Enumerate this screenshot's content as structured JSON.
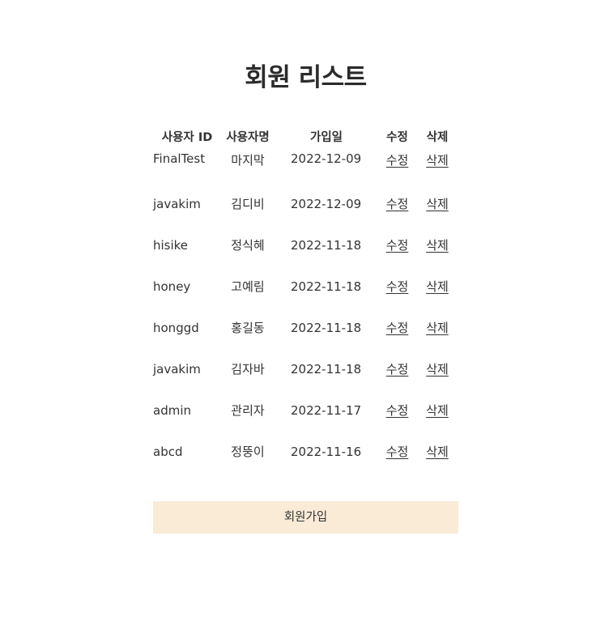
{
  "page": {
    "title": "회원 리스트"
  },
  "table": {
    "headers": {
      "id": "사용자 ID",
      "name": "사용자명",
      "date": "가입일",
      "edit": "수정",
      "delete": "삭제"
    },
    "rows": [
      {
        "id": "FinalTest",
        "name": "마지막",
        "date": "2022-12-09",
        "edit": "수정",
        "delete": "삭제"
      },
      {
        "id": "javakim",
        "name": "김디비",
        "date": "2022-12-09",
        "edit": "수정",
        "delete": "삭제"
      },
      {
        "id": "hisike",
        "name": "정식혜",
        "date": "2022-11-18",
        "edit": "수정",
        "delete": "삭제"
      },
      {
        "id": "honey",
        "name": "고예림",
        "date": "2022-11-18",
        "edit": "수정",
        "delete": "삭제"
      },
      {
        "id": "honggd",
        "name": "홍길동",
        "date": "2022-11-18",
        "edit": "수정",
        "delete": "삭제"
      },
      {
        "id": "javakim",
        "name": "김자바",
        "date": "2022-11-18",
        "edit": "수정",
        "delete": "삭제"
      },
      {
        "id": "admin",
        "name": "관리자",
        "date": "2022-11-17",
        "edit": "수정",
        "delete": "삭제"
      },
      {
        "id": "abcd",
        "name": "정뚱이",
        "date": "2022-11-16",
        "edit": "수정",
        "delete": "삭제"
      }
    ]
  },
  "signup": {
    "label": "회원가입"
  },
  "colors": {
    "button_bg": "#faebd7",
    "text": "#333333"
  }
}
